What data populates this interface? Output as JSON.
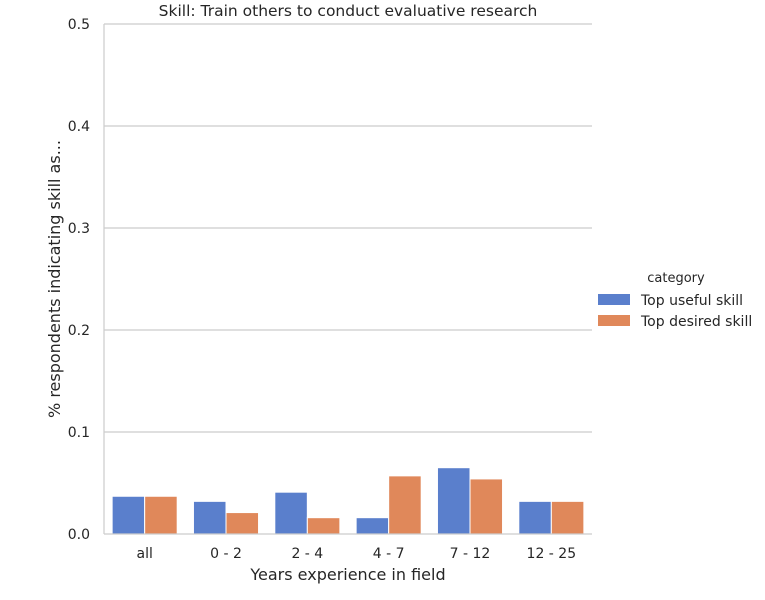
{
  "chart_data": {
    "type": "bar",
    "title": "Skill: Train others to conduct evaluative research",
    "xlabel": "Years experience in field",
    "ylabel": "% respondents indicating skill as...",
    "categories": [
      "all",
      "0 - 2",
      "2 - 4",
      "4 - 7",
      "7 - 12",
      "12 - 25"
    ],
    "ylim": [
      0,
      0.5
    ],
    "yticks": [
      "0.0",
      "0.1",
      "0.2",
      "0.3",
      "0.4",
      "0.5"
    ],
    "grid": true,
    "legend": {
      "title": "category",
      "placement": "right"
    },
    "series": [
      {
        "name": "Top useful skill",
        "color": "#5a7fcc",
        "values": [
          0.037,
          0.032,
          0.041,
          0.016,
          0.065,
          0.032
        ]
      },
      {
        "name": "Top desired skill",
        "color": "#e0885a",
        "values": [
          0.037,
          0.021,
          0.016,
          0.057,
          0.054,
          0.032
        ]
      }
    ]
  }
}
